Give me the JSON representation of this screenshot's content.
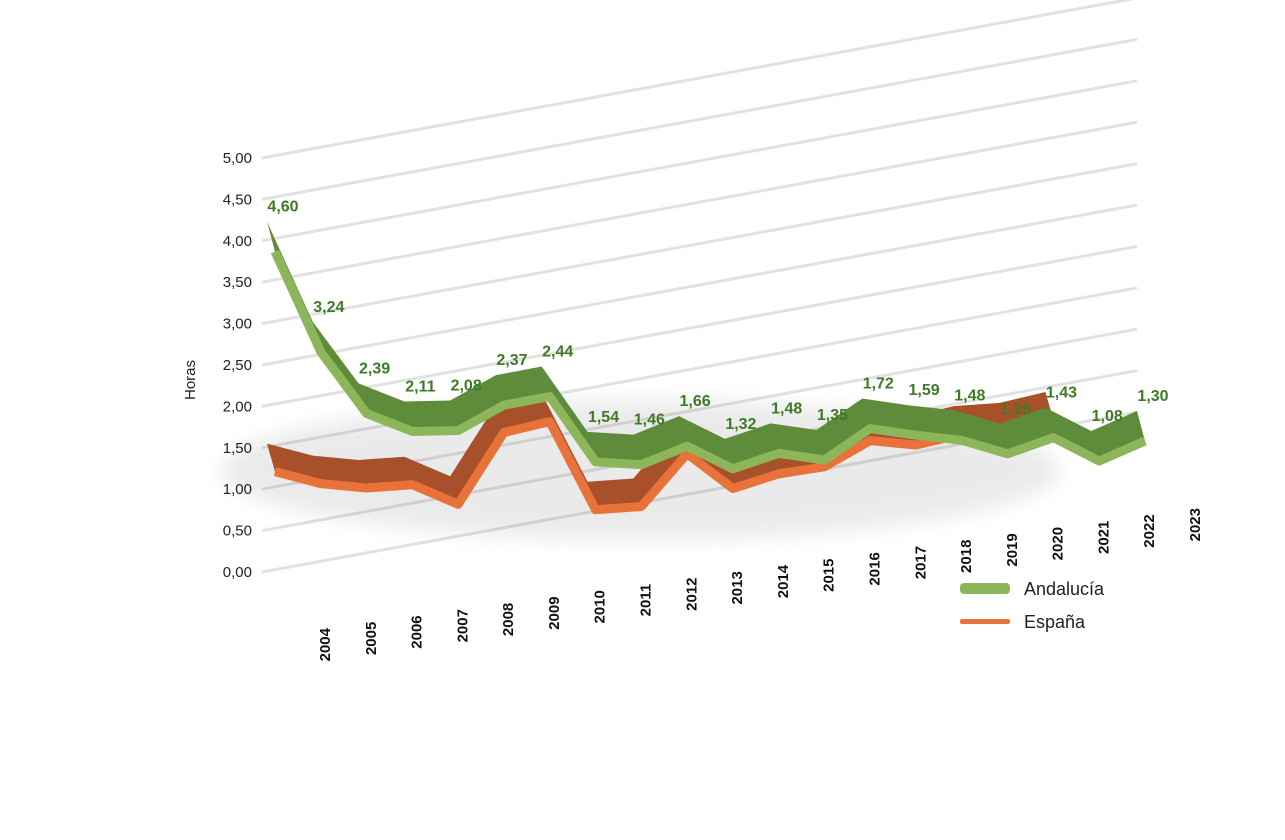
{
  "chart_data": {
    "type": "line",
    "style": "3d-ribbon",
    "title": "",
    "ylabel": "Horas",
    "xlabel": "",
    "ylim": [
      0,
      5
    ],
    "yticks": [
      "0,00",
      "0,50",
      "1,00",
      "1,50",
      "2,00",
      "2,50",
      "3,00",
      "3,50",
      "4,00",
      "4,50",
      "5,00"
    ],
    "categories": [
      "2004",
      "2005",
      "2006",
      "2007",
      "2008",
      "2009",
      "2010",
      "2011",
      "2012",
      "2013",
      "2014",
      "2015",
      "2016",
      "2017",
      "2018",
      "2019",
      "2020",
      "2021",
      "2022",
      "2023"
    ],
    "grid": true,
    "legend_position": "bottom-right",
    "series": [
      {
        "name": "Andalucía",
        "color": "#8db55a",
        "values": [
          4.6,
          3.24,
          2.39,
          2.11,
          2.08,
          2.37,
          2.44,
          1.54,
          1.46,
          1.66,
          1.32,
          1.48,
          1.35,
          1.72,
          1.59,
          1.48,
          1.26,
          1.43,
          1.08,
          1.3
        ],
        "labels": [
          "4,60",
          "3,24",
          "2,39",
          "2,11",
          "2,08",
          "2,37",
          "2,44",
          "1,54",
          "1,46",
          "1,66",
          "1,32",
          "1,48",
          "1,35",
          "1,72",
          "1,59",
          "1,48",
          "1,26",
          "1,43",
          "1,08",
          "1,30"
        ]
      },
      {
        "name": "España",
        "color": "#e8733a",
        "values": [
          2.0,
          1.8,
          1.7,
          1.7,
          1.4,
          2.3,
          2.4,
          1.2,
          1.2,
          1.85,
          1.35,
          1.5,
          1.55,
          1.85,
          1.75,
          1.85,
          1.85,
          1.95,
          null,
          null
        ]
      }
    ]
  }
}
